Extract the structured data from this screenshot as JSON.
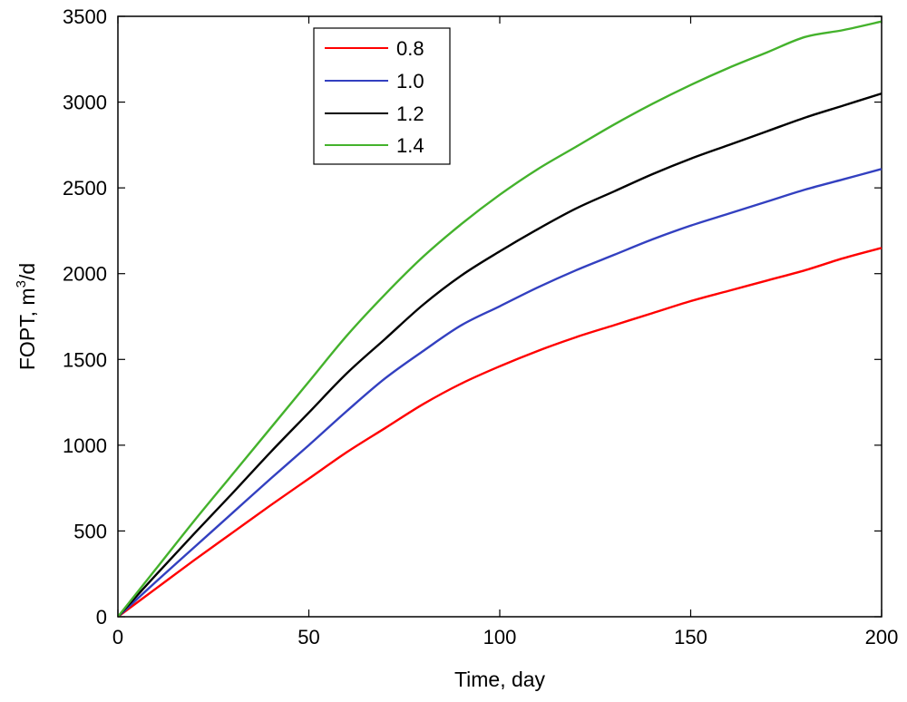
{
  "chart_data": {
    "type": "line",
    "title": "",
    "xlabel": "Time, day",
    "ylabel_main": "FOPT, m",
    "ylabel_sup": "3",
    "ylabel_tail": "/d",
    "xlim": [
      0,
      200
    ],
    "ylim": [
      0,
      3500
    ],
    "xticks": [
      0,
      50,
      100,
      150,
      200
    ],
    "yticks": [
      0,
      500,
      1000,
      1500,
      2000,
      2500,
      3000,
      3500
    ],
    "xtick_labels": [
      "0",
      "50",
      "100",
      "150",
      "200"
    ],
    "ytick_labels": [
      "0",
      "500",
      "1000",
      "1500",
      "2000",
      "2500",
      "3000",
      "3500"
    ],
    "grid": false,
    "legend_position": "top-left",
    "x": [
      0,
      10,
      20,
      30,
      40,
      50,
      60,
      70,
      80,
      90,
      100,
      110,
      120,
      130,
      140,
      150,
      160,
      170,
      180,
      190,
      200
    ],
    "series": [
      {
        "name": "0.8",
        "color": "#ff0000",
        "values": [
          0,
          165,
          330,
          490,
          650,
          805,
          960,
          1100,
          1240,
          1360,
          1460,
          1550,
          1630,
          1700,
          1770,
          1840,
          1900,
          1960,
          2020,
          2090,
          2150
        ]
      },
      {
        "name": "1.0",
        "color": "#3340c0",
        "values": [
          0,
          205,
          405,
          605,
          805,
          1000,
          1200,
          1390,
          1550,
          1700,
          1810,
          1920,
          2020,
          2110,
          2200,
          2280,
          2350,
          2420,
          2490,
          2550,
          2610
        ]
      },
      {
        "name": "1.2",
        "color": "#000000",
        "values": [
          0,
          245,
          485,
          720,
          960,
          1190,
          1420,
          1620,
          1820,
          1990,
          2130,
          2260,
          2380,
          2480,
          2580,
          2670,
          2750,
          2830,
          2910,
          2980,
          3050
        ]
      },
      {
        "name": "1.4",
        "color": "#44b22c",
        "values": [
          0,
          280,
          560,
          830,
          1100,
          1370,
          1640,
          1880,
          2100,
          2290,
          2460,
          2610,
          2740,
          2870,
          2990,
          3100,
          3200,
          3290,
          3380,
          3420,
          3470
        ]
      }
    ]
  }
}
